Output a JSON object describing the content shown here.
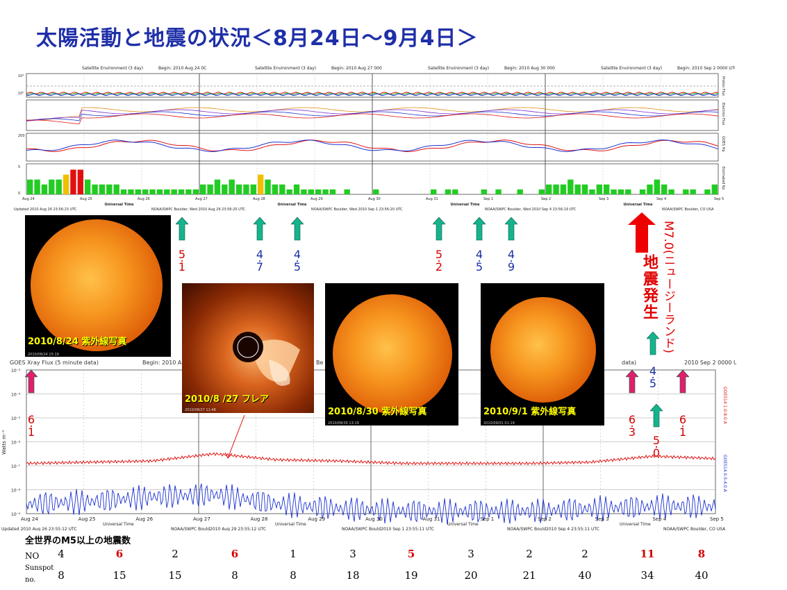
{
  "title": "太陽活動と地震の状況＜8月24日～9月4日＞",
  "satellite_panel": {
    "headers": [
      {
        "t": "Satellite Environment (3 day)",
        "b": "Begin:  2010  Aug 24  0C"
      },
      {
        "t": "Satellite Environment (3 day)",
        "b": "Begin:  2010  Aug 27 000"
      },
      {
        "t": "Satellite Environment (3 day)",
        "b": "Begin:  2010  Aug 30 000"
      },
      {
        "t": "Satellite Environment (3 day)",
        "b": "Begin:  2010  Sep 2  0000 UTC"
      }
    ],
    "ylabels": [
      "Proton Flux",
      "Electron Flux",
      "GOES Hp",
      "Estimated Kp"
    ],
    "date_ticks": [
      "Aug 24",
      "Aug 25",
      "Aug 26",
      "Aug 27",
      "Aug 28",
      "Aug 29",
      "Aug 30",
      "Aug 31",
      "Sep 1",
      "Sep 2",
      "Sep 3",
      "Sep 4",
      "Sep 5"
    ],
    "axis_label": "Universal Time",
    "footers": [
      "Updated 2010 Aug 26 23:56:23 UTC",
      "NOAA/SWPC Boulder, Wed 2010 Aug 29 23:56:20 UTC",
      "NOAA/SWPC Boulder, Wed 2010 Sep  1 23:56:20 UTC",
      "NOAA/SWPC Boulder, Wed 2010 Sep  4 23:56:19 UTC",
      "NOAA/SWPC Boulder, CO USA"
    ],
    "yticks_proton": [
      "10⁴",
      "10⁰"
    ],
    "yticks_hp": [
      "200",
      "0"
    ],
    "yticks_kp": [
      "5",
      "0"
    ]
  },
  "xray_panel": {
    "header_left": "GOES Xray Flux (5 minute data)",
    "header_begin": "Begin:  2010  A",
    "header_right": "2010  Sep 2  0000 UTC",
    "header_partial_be": "Be",
    "header_partial_data": "data)",
    "ylabel": "Watts m⁻²",
    "right_label_red": "GOES14 1.0-8.0 A",
    "right_label_blue": "GOES14 0.5-4.0 A",
    "yticks": [
      "10⁻³",
      "10⁻⁴",
      "10⁻⁵",
      "10⁻⁶",
      "10⁻⁷",
      "10⁻⁸",
      "10⁻⁹"
    ],
    "date_ticks": [
      "Aug 24",
      "Aug 25",
      "Aug 26",
      "Aug 27",
      "Aug 28",
      "Aug 29",
      "Aug 30",
      "Aug 31",
      "Sep 1",
      "Sep 2",
      "Sep 3",
      "Sep 4",
      "Sep 5"
    ],
    "axis_label": "Universal Time",
    "footers": [
      "Updated 2010 Aug 26 23:55:12 UTC",
      "NOAA/SWPC Bould2010 Aug 29 23:55:12 UTC",
      "NOAA/SWPC Bould2010 Sep  1 23:55:11 UTC",
      "NOAA/SWPC Bould2010 Sep  4 23:55:11 UTC",
      "NOAA/SWPC Boulder, CO USA"
    ]
  },
  "photos": {
    "p1": {
      "caption": "2010/8/24 紫外線写真",
      "stamp": "2010/08/24 15:19"
    },
    "p2": {
      "caption": "2010/8 /27 フレア",
      "stamp": "2010/08/27 11:48"
    },
    "p3": {
      "caption": "2010/8/30 紫外線写真",
      "stamp": "2010/08/30 13:19"
    },
    "p4": {
      "caption": "2010/9/1 紫外線写真",
      "stamp": "2010/09/01 01:19"
    }
  },
  "quake_markers": [
    {
      "id": "q1",
      "m": [
        "5",
        ".",
        "1"
      ],
      "color": "#d40000"
    },
    {
      "id": "q2",
      "m": [
        "4",
        ".",
        "7"
      ],
      "color": "#1a2fa6"
    },
    {
      "id": "q3",
      "m": [
        "4",
        ".",
        "5"
      ],
      "color": "#1a2fa6"
    },
    {
      "id": "q4",
      "m": [
        "5",
        ".",
        "2"
      ],
      "color": "#d40000"
    },
    {
      "id": "q5",
      "m": [
        "4",
        ".",
        "5"
      ],
      "color": "#1a2fa6"
    },
    {
      "id": "q6",
      "m": [
        "4",
        ".",
        "9"
      ],
      "color": "#1a2fa6"
    },
    {
      "id": "q7",
      "m": [
        "4",
        ".",
        "5"
      ],
      "color": "#1a2fa6"
    },
    {
      "id": "q8",
      "m": [
        "6",
        ".",
        "1"
      ],
      "color": "#d40000"
    },
    {
      "id": "q9",
      "m": [
        "6",
        ".",
        "3"
      ],
      "color": "#d40000"
    },
    {
      "id": "q10",
      "m": [
        "5",
        ".",
        "0"
      ],
      "color": "#d40000"
    },
    {
      "id": "q11",
      "m": [
        "6",
        ".",
        "1"
      ],
      "color": "#d40000"
    }
  ],
  "big_quake": {
    "label": "地震発生",
    "detail": "M7.0(ニュージーランド)"
  },
  "table": {
    "heading": "全世界のM5以上の地震数",
    "row1_label": "NO",
    "row2_label_a": "Sunspot",
    "row2_label_b": "no.",
    "no": [
      "4",
      "6",
      "2",
      "6",
      "1",
      "3",
      "5",
      "3",
      "2",
      "2",
      "11",
      "8"
    ],
    "no_colors": [
      "#000",
      "#d40000",
      "#000",
      "#d40000",
      "#000",
      "#000",
      "#d40000",
      "#000",
      "#000",
      "#000",
      "#d40000",
      "#d40000"
    ],
    "sunspot": [
      "8",
      "15",
      "15",
      "8",
      "8",
      "18",
      "19",
      "20",
      "21",
      "40",
      "34",
      "40"
    ]
  },
  "chart_data": [
    {
      "type": "bar",
      "title": "Satellite Environment (3 day) - Estimated Kp",
      "categories": [
        "Aug 24",
        "Aug 25",
        "Aug 26",
        "Aug 27",
        "Aug 28",
        "Aug 29",
        "Aug 30",
        "Aug 31",
        "Sep 1",
        "Sep 2",
        "Sep 3",
        "Sep 4"
      ],
      "ylim": [
        0,
        9
      ],
      "series": [
        {
          "name": "Estimated Kp",
          "values": [
            [
              3,
              3,
              2,
              3,
              3,
              4,
              5,
              5
            ],
            [
              3,
              2,
              2,
              2,
              2,
              1,
              1,
              1
            ],
            [
              1,
              1,
              1,
              1,
              1,
              1,
              1,
              1
            ],
            [
              2,
              2,
              3,
              2,
              3,
              2,
              2,
              2
            ],
            [
              4,
              3,
              2,
              2,
              1,
              2,
              1,
              1
            ],
            [
              1,
              1,
              1,
              0,
              1,
              0,
              0,
              0
            ],
            [
              1,
              0,
              0,
              0,
              0,
              0,
              0,
              0
            ],
            [
              1,
              0,
              1,
              1,
              0,
              0,
              0,
              1
            ],
            [
              0,
              1,
              0,
              0,
              1,
              0,
              0,
              1
            ],
            [
              2,
              2,
              2,
              3,
              2,
              2,
              1,
              2
            ],
            [
              2,
              1,
              1,
              1,
              0,
              1,
              2,
              3
            ],
            [
              2,
              1,
              0,
              1,
              1,
              0,
              1,
              2
            ]
          ]
        }
      ],
      "colors": {
        "low": "#22cc22",
        "mid": "#f0c000",
        "high": "#e01010"
      }
    },
    {
      "type": "line",
      "title": "GOES Xray Flux (5 minute data)",
      "xlabel": "Universal Time",
      "ylabel": "Watts m-2",
      "x": [
        "Aug 24",
        "Aug 25",
        "Aug 26",
        "Aug 27",
        "Aug 28",
        "Aug 29",
        "Aug 30",
        "Aug 31",
        "Sep 1",
        "Sep 2",
        "Sep 3",
        "Sep 4"
      ],
      "scale": "log",
      "series": [
        {
          "name": "GOES14 1.0-8.0 A",
          "values": [
            -6.9,
            -6.85,
            -6.8,
            -6.5,
            -6.75,
            -6.8,
            -6.9,
            -6.9,
            -6.9,
            -6.85,
            -6.6,
            -6.7
          ]
        },
        {
          "name": "GOES14 0.5-4.0 A",
          "values": [
            -8.6,
            -8.5,
            -8.3,
            -8.2,
            -8.6,
            -8.8,
            -8.9,
            -8.9,
            -8.9,
            -8.8,
            -8.7,
            -8.7
          ]
        }
      ]
    }
  ]
}
